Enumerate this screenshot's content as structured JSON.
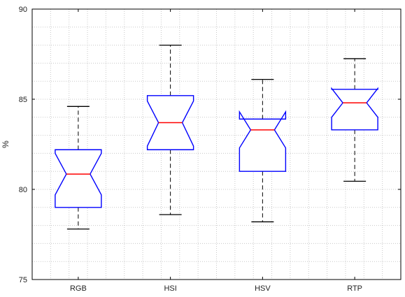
{
  "chart_data": {
    "type": "boxplot",
    "title": "",
    "xlabel": "",
    "ylabel": "%",
    "ylim": [
      75,
      90
    ],
    "yticks": [
      75,
      80,
      85,
      90
    ],
    "grid": true,
    "notched": true,
    "categories": [
      "RGB",
      "HSI",
      "HSV",
      "RTP"
    ],
    "boxes": [
      {
        "category": "RGB",
        "whisker_low": 77.8,
        "q1": 79.0,
        "median": 80.85,
        "q3": 82.2,
        "whisker_high": 84.6,
        "notch_low": 79.7,
        "notch_high": 82.0
      },
      {
        "category": "HSI",
        "whisker_low": 78.6,
        "q1": 82.2,
        "median": 83.7,
        "q3": 85.2,
        "whisker_high": 88.0,
        "notch_low": 82.4,
        "notch_high": 84.9
      },
      {
        "category": "HSV",
        "whisker_low": 78.2,
        "q1": 81.0,
        "median": 83.3,
        "q3": 83.9,
        "whisker_high": 86.1,
        "notch_low": 82.3,
        "notch_high": 84.3
      },
      {
        "category": "RTP",
        "whisker_low": 80.45,
        "q1": 83.3,
        "median": 84.8,
        "q3": 85.55,
        "whisker_high": 87.25,
        "notch_low": 84.0,
        "notch_high": 85.6
      }
    ],
    "colors": {
      "box": "#0000ff",
      "median": "#ff0000",
      "whisker": "#000000",
      "grid": "#c8c8c8",
      "axes": "#000000"
    }
  }
}
